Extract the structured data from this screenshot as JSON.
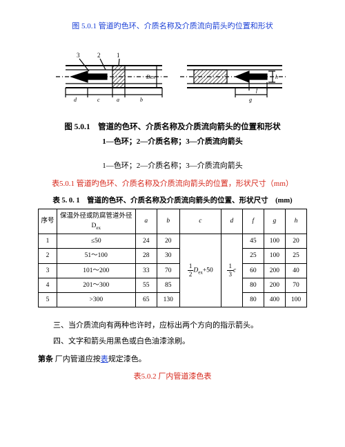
{
  "doc": {
    "top_caption": "图 5.0.1 管道旳色环、介质名称及介质流向箭头旳位置和形状",
    "bold_caption": "图 5.0.1　管道的色环、介质名称及介质流向箭头的位置和形状",
    "sub_caption": "1—色环；2—介质名称；3—介质流向箭头",
    "plain_caption": "1—色环；2—介质名称；3—介质流向箭头",
    "table501_red_caption": "表5.0.1 管道旳色环、介质名称及介质流向箭头的位置，形状尺寸（mm）",
    "table501_inner_caption": "表 5. 0. 1　管道的色环、介质名称及介质流向箭头的位置、形状尺寸　(mm)",
    "para3": "三、当介质流向有两种也许时，应标出两个方向的指示箭头。",
    "para4": "四、文字和箭头用黑色或白色油漆涂刷。",
    "section_label": "第条",
    "section_text_1": " 厂内管道应按",
    "section_link": "表",
    "section_text_2": "规定漆色。",
    "table502_caption": "表5.0.2 厂内管道漆色表"
  },
  "tbl": {
    "h_seq": "序号",
    "h_dia": "保温外径或防腐管道外径Dex",
    "h_a": "a",
    "h_b": "b",
    "h_c": "c",
    "h_d": "d",
    "h_f": "f",
    "h_g": "g",
    "h_h": "h",
    "rows": [
      {
        "seq": "1",
        "dia": "≤50",
        "a": "24",
        "b": "20",
        "f": "45",
        "g": "100",
        "h": "20"
      },
      {
        "seq": "2",
        "dia": "51～100",
        "a": "28",
        "b": "30",
        "f": "25",
        "g": "100",
        "h": "25"
      },
      {
        "seq": "3",
        "dia": "101～200",
        "a": "33",
        "b": "70",
        "f": "60",
        "g": "200",
        "h": "40"
      },
      {
        "seq": "4",
        "dia": "201～300",
        "a": "55",
        "b": "85",
        "f": "80",
        "g": "200",
        "h": "70"
      },
      {
        "seq": "5",
        "dia": ">300",
        "a": "65",
        "b": "130",
        "f": "80",
        "g": "400",
        "h": "100"
      }
    ],
    "c_formula_prefix": "D",
    "c_formula_sub": "ex",
    "c_formula_suffix": "+50",
    "d_num": "1",
    "d_den": "2",
    "d_num2": "1",
    "d_den2": "3"
  },
  "colors": {
    "blue": "#1a3fd6",
    "red": "#d6261a",
    "black": "#000000",
    "hatch": "#000000"
  }
}
